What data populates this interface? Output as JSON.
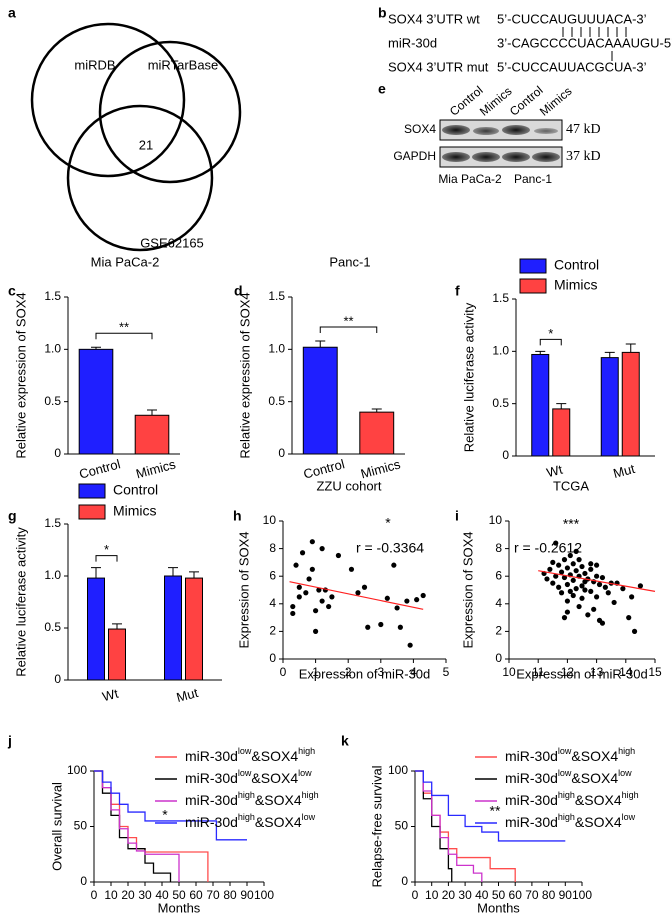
{
  "figure": {
    "venn": {
      "label": "a",
      "sets": [
        "miRDB",
        "miRTarBase",
        "GSE62165"
      ],
      "overlap": "21"
    },
    "alignment": {
      "label": "b",
      "rows": [
        {
          "name": "SOX4 3’UTR wt",
          "seq": "5’-CUCCAUGUUUACA-3’"
        },
        {
          "name": "miR-30d",
          "seq": "3’-CAGCCCCUACAAAUGU-5’"
        },
        {
          "name": "SOX4 3’UTR mut",
          "seq": "5’-CUCCAUUACGCUA-3’"
        }
      ]
    },
    "blot": {
      "label": "e",
      "lanes": [
        "Control",
        "Mimics",
        "Control",
        "Mimics"
      ],
      "proteins": [
        {
          "name": "SOX4",
          "size": "47 kD"
        },
        {
          "name": "GAPDH",
          "size": "37 kD"
        }
      ],
      "cells": [
        "Mia PaCa-2",
        "Panc-1"
      ]
    }
  },
  "chart_data": [
    {
      "type": "bar",
      "label": "c",
      "title": "Mia PaCa-2",
      "y_label": "Relative expression of SOX4",
      "categories": [
        "Control",
        "Mimics"
      ],
      "values": [
        1.0,
        0.37
      ],
      "errors": [
        0.02,
        0.05
      ],
      "colors": [
        "#1f1fff",
        "#ff4242"
      ],
      "ylim": [
        0,
        1.5
      ],
      "yticks": [
        0,
        0.5,
        {
          "value": 1,
          "label": "1.0"
        },
        1.5
      ],
      "annotations": [
        "**"
      ]
    },
    {
      "type": "bar",
      "label": "d",
      "title": "Panc-1",
      "y_label": "Relative expression of SOX4",
      "categories": [
        "Control",
        "Mimics"
      ],
      "values": [
        1.02,
        0.4
      ],
      "errors": [
        0.06,
        0.03
      ],
      "colors": [
        "#1f1fff",
        "#ff4242"
      ],
      "ylim": [
        0,
        1.5
      ],
      "yticks": [
        0,
        0.5,
        {
          "value": 1,
          "label": "1.0"
        },
        1.5
      ],
      "annotations": [
        "**"
      ]
    },
    {
      "type": "grouped_bar",
      "label": "f",
      "y_label": "Relative luciferase activity",
      "categories": [
        "Wt",
        "Mut"
      ],
      "series": [
        {
          "name": "Control",
          "color": "#1f1fff",
          "values": [
            0.97,
            0.94
          ],
          "errors": [
            0.03,
            0.05
          ]
        },
        {
          "name": "Mimics",
          "color": "#ff4242",
          "values": [
            0.45,
            0.99
          ],
          "errors": [
            0.05,
            0.08
          ]
        }
      ],
      "ylim": [
        0,
        1.5
      ],
      "yticks": [
        0,
        0.5,
        {
          "value": 1,
          "label": "1.0"
        },
        1.5
      ],
      "annotations": [
        "*"
      ]
    },
    {
      "type": "grouped_bar",
      "label": "g",
      "y_label": "Relative luciferase activity",
      "categories": [
        "Wt",
        "Mut"
      ],
      "series": [
        {
          "name": "Control",
          "color": "#1f1fff",
          "values": [
            0.98,
            1.0
          ],
          "errors": [
            0.1,
            0.08
          ]
        },
        {
          "name": "Mimics",
          "color": "#ff4242",
          "values": [
            0.49,
            0.98
          ],
          "errors": [
            0.05,
            0.06
          ]
        }
      ],
      "ylim": [
        0,
        1.5
      ],
      "yticks": [
        0,
        0.5,
        {
          "value": 1,
          "label": "1.0"
        },
        1.5
      ],
      "annotations": [
        "*"
      ]
    },
    {
      "type": "scatter",
      "label": "h",
      "title": "ZZU cohort",
      "x_label": "Expression of miR-30d",
      "y_label": "Expression of SOX4",
      "x": [
        0.3,
        0.3,
        0.4,
        0.5,
        0.5,
        0.6,
        0.7,
        0.8,
        0.9,
        0.9,
        1.0,
        1.0,
        1.1,
        1.2,
        1.2,
        1.3,
        1.4,
        1.5,
        1.7,
        2.1,
        2.3,
        2.5,
        2.6,
        3.0,
        3.2,
        3.4,
        3.5,
        3.6,
        3.8,
        3.9,
        4.1,
        4.3
      ],
      "y": [
        3.8,
        3.3,
        6.8,
        5.2,
        4.5,
        7.7,
        4.8,
        5.8,
        8.5,
        6.5,
        3.5,
        2.0,
        5.0,
        4.2,
        8.0,
        5.0,
        3.8,
        4.5,
        7.5,
        6.5,
        4.8,
        5.2,
        2.3,
        2.5,
        4.4,
        6.8,
        3.7,
        2.3,
        4.2,
        1.0,
        4.3,
        4.6
      ],
      "trend_line": {
        "x": [
          0.2,
          4.3
        ],
        "y": [
          5.6,
          3.6
        ],
        "color": "#ff2020"
      },
      "xlim": [
        0,
        5
      ],
      "ylim": [
        0,
        10
      ],
      "xticks": [
        0,
        1,
        2,
        3,
        4,
        5
      ],
      "yticks": [
        0,
        2,
        4,
        6,
        8,
        10
      ],
      "annotations": [
        "*",
        "r = -0.3364"
      ]
    },
    {
      "type": "scatter",
      "label": "i",
      "title": "TCGA",
      "x_label": "Expression of miR-30d",
      "y_label": "Expression of SOX4",
      "x": [
        11.2,
        11.3,
        11.4,
        11.5,
        11.5,
        11.6,
        11.7,
        11.7,
        11.8,
        11.8,
        11.9,
        11.9,
        12.0,
        12.0,
        12.0,
        12.1,
        12.1,
        12.2,
        12.2,
        12.2,
        12.3,
        12.3,
        12.4,
        12.4,
        12.5,
        12.5,
        12.5,
        12.6,
        12.6,
        12.7,
        12.7,
        12.8,
        12.8,
        12.9,
        12.9,
        13.0,
        13.0,
        13.1,
        13.1,
        13.2,
        13.2,
        13.3,
        13.4,
        13.5,
        13.6,
        13.7,
        13.9,
        14.1,
        14.2,
        14.3,
        14.5,
        11.6,
        12.0,
        12.4,
        12.8,
        11.9,
        12.3,
        12.1,
        12.6,
        13.0
      ],
      "y": [
        6.2,
        5.8,
        6.5,
        5.5,
        7.0,
        6.0,
        6.8,
        5.2,
        6.3,
        4.8,
        7.2,
        5.9,
        6.6,
        5.4,
        4.2,
        6.1,
        7.5,
        5.7,
        6.9,
        4.6,
        6.4,
        5.1,
        6.0,
        3.8,
        6.7,
        5.3,
        4.4,
        6.2,
        5.0,
        5.8,
        3.2,
        6.5,
        4.9,
        5.6,
        3.6,
        6.0,
        4.5,
        5.4,
        2.8,
        5.9,
        2.6,
        5.2,
        4.8,
        5.5,
        4.1,
        5.5,
        5.1,
        3.0,
        4.5,
        2.0,
        5.3,
        8.4,
        3.4,
        7.2,
        6.9,
        3.0,
        7.8,
        4.9,
        5.6,
        6.8
      ],
      "trend_line": {
        "x": [
          11,
          15
        ],
        "y": [
          6.4,
          4.9
        ],
        "color": "#ff2020"
      },
      "xlim": [
        10,
        15
      ],
      "ylim": [
        0,
        10
      ],
      "xticks": [
        10,
        11,
        12,
        13,
        14,
        15
      ],
      "yticks": [
        0,
        2,
        4,
        6,
        8,
        10
      ],
      "annotations": [
        "***",
        "r = -0.2612"
      ]
    },
    {
      "type": "survival",
      "label": "j",
      "x_label": "Months",
      "y_label": "Overall survival",
      "series": [
        {
          "name": "miR-30dlow&SOX4high",
          "color": "#ff4d4d",
          "x": [
            0,
            5,
            10,
            15,
            20,
            25,
            30,
            40,
            60,
            67
          ],
          "y": [
            100,
            85,
            70,
            50,
            40,
            30,
            27,
            27,
            27,
            0
          ]
        },
        {
          "name": "miR-30dlow&SOX4low",
          "color": "#000000",
          "x": [
            0,
            5,
            10,
            15,
            20,
            30,
            35,
            45
          ],
          "y": [
            100,
            80,
            60,
            40,
            30,
            17,
            8,
            0
          ]
        },
        {
          "name": "miR-30dhigh&SOX4high",
          "color": "#cc33cc",
          "x": [
            0,
            5,
            10,
            15,
            20,
            25,
            30,
            50
          ],
          "y": [
            100,
            85,
            65,
            48,
            35,
            28,
            25,
            0
          ]
        },
        {
          "name": "miR-30dhigh&SOX4low",
          "color": "#2a2aff",
          "x": [
            0,
            5,
            10,
            15,
            20,
            30,
            70,
            72,
            90
          ],
          "y": [
            100,
            90,
            80,
            70,
            63,
            55,
            55,
            38,
            38
          ]
        }
      ],
      "xlim": [
        0,
        100
      ],
      "ylim": [
        0,
        100
      ],
      "xticks": [
        0,
        10,
        20,
        30,
        40,
        50,
        60,
        70,
        80,
        90,
        100
      ],
      "yticks": [
        0,
        50,
        100
      ],
      "annotations": [
        "*"
      ]
    },
    {
      "type": "survival",
      "label": "k",
      "x_label": "Months",
      "y_label": "Relapse-free survival",
      "series": [
        {
          "name": "miR-30dlow&SOX4high",
          "color": "#ff4d4d",
          "x": [
            0,
            5,
            10,
            15,
            20,
            25,
            45,
            60
          ],
          "y": [
            100,
            80,
            60,
            45,
            30,
            22,
            12,
            0
          ]
        },
        {
          "name": "miR-30dlow&SOX4low",
          "color": "#000000",
          "x": [
            0,
            5,
            10,
            15,
            20,
            22
          ],
          "y": [
            100,
            75,
            50,
            30,
            12,
            0
          ]
        },
        {
          "name": "miR-30dhigh&SOX4high",
          "color": "#cc33cc",
          "x": [
            0,
            5,
            10,
            15,
            20,
            25,
            35,
            40
          ],
          "y": [
            100,
            82,
            60,
            40,
            25,
            15,
            8,
            0
          ]
        },
        {
          "name": "miR-30dhigh&SOX4low",
          "color": "#2a2aff",
          "x": [
            0,
            5,
            10,
            20,
            30,
            40,
            50,
            90
          ],
          "y": [
            100,
            90,
            78,
            60,
            50,
            45,
            37,
            37
          ]
        }
      ],
      "xlim": [
        0,
        100
      ],
      "ylim": [
        0,
        100
      ],
      "xticks": [
        0,
        10,
        20,
        30,
        40,
        50,
        60,
        70,
        80,
        90,
        100
      ],
      "yticks": [
        0,
        50,
        100
      ],
      "annotations": [
        "**"
      ]
    }
  ]
}
